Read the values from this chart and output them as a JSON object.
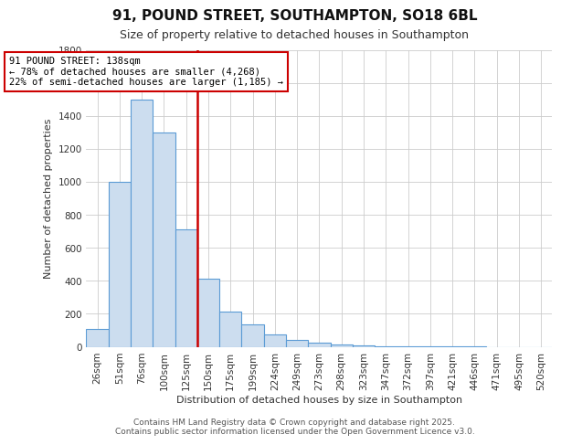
{
  "title": "91, POUND STREET, SOUTHAMPTON, SO18 6BL",
  "subtitle": "Size of property relative to detached houses in Southampton",
  "xlabel": "Distribution of detached houses by size in Southampton",
  "ylabel": "Number of detached properties",
  "bar_labels": [
    "26sqm",
    "51sqm",
    "76sqm",
    "100sqm",
    "125sqm",
    "150sqm",
    "175sqm",
    "199sqm",
    "224sqm",
    "249sqm",
    "273sqm",
    "298sqm",
    "323sqm",
    "347sqm",
    "372sqm",
    "397sqm",
    "421sqm",
    "446sqm",
    "471sqm",
    "495sqm",
    "520sqm"
  ],
  "bar_values": [
    110,
    1000,
    1500,
    1300,
    710,
    415,
    215,
    135,
    75,
    40,
    25,
    12,
    8,
    5,
    3,
    2,
    1,
    1,
    0,
    0,
    0
  ],
  "bar_color": "#ccddef",
  "bar_edge_color": "#5b9bd5",
  "vline_x": 4.5,
  "vline_color": "#cc0000",
  "annotation_line1": "91 POUND STREET: 138sqm",
  "annotation_line2": "← 78% of detached houses are smaller (4,268)",
  "annotation_line3": "22% of semi-detached houses are larger (1,185) →",
  "box_color": "white",
  "box_edge_color": "#cc0000",
  "ylim": [
    0,
    1800
  ],
  "yticks": [
    0,
    200,
    400,
    600,
    800,
    1000,
    1200,
    1400,
    1600,
    1800
  ],
  "footer1": "Contains HM Land Registry data © Crown copyright and database right 2025.",
  "footer2": "Contains public sector information licensed under the Open Government Licence v3.0.",
  "bg_color": "white",
  "grid_color": "#cccccc",
  "title_fontsize": 11,
  "subtitle_fontsize": 9,
  "axis_label_fontsize": 8,
  "tick_fontsize": 7.5,
  "footer_fontsize": 6.5
}
